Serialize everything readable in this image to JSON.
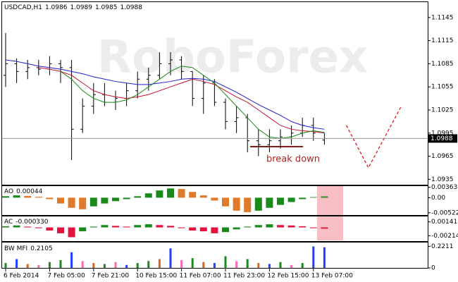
{
  "chart_data": [
    {
      "type": "ohlc",
      "title": "USDCAD,H1",
      "header_values": [
        1.0986,
        1.0989,
        1.0985,
        1.0988
      ],
      "watermark": "RoboForex",
      "categories": [
        "6 Feb 2014",
        null,
        null,
        null,
        "7 Feb 05:00",
        null,
        null,
        null,
        "7 Feb 21:00",
        null,
        null,
        null,
        "10 Feb 15:00",
        null,
        null,
        null,
        "11 Feb 07:00",
        null,
        null,
        null,
        "11 Feb 23:00",
        null,
        null,
        null,
        "12 Feb 15:00",
        null,
        null,
        null,
        "13 Feb 07:00",
        null
      ],
      "open": [
        1.107,
        1.1085,
        1.1075,
        1.108,
        1.1078,
        1.1085,
        1.108,
        1.1,
        1.103,
        1.1045,
        1.1035,
        1.104,
        1.105,
        1.1065,
        1.107,
        1.1085,
        1.109,
        1.1075,
        1.104,
        1.106,
        1.1035,
        1.101,
        1.1015,
        1.0985,
        1.098,
        1.0985,
        1.099,
        1.0995,
        1.1005,
        1.0986
      ],
      "high": [
        1.1125,
        1.1092,
        1.109,
        1.109,
        1.1095,
        1.109,
        1.109,
        1.104,
        1.106,
        1.106,
        1.105,
        1.106,
        1.1075,
        1.108,
        1.11,
        1.11,
        1.1095,
        1.1075,
        1.107,
        1.1065,
        1.104,
        1.103,
        1.102,
        1.1,
        1.1,
        1.1,
        1.1005,
        1.1015,
        1.1015,
        1.0995
      ],
      "low": [
        1.1055,
        1.106,
        1.1065,
        1.107,
        1.107,
        1.106,
        1.096,
        1.0995,
        1.102,
        1.103,
        1.1025,
        1.103,
        1.104,
        1.105,
        1.1065,
        1.107,
        1.1065,
        1.103,
        1.102,
        1.103,
        1.1,
        1.0995,
        1.097,
        1.0965,
        1.097,
        1.0975,
        1.098,
        1.099,
        1.0985,
        1.098
      ],
      "close": [
        1.1085,
        1.1075,
        1.108,
        1.1078,
        1.1085,
        1.108,
        1.1,
        1.103,
        1.1045,
        1.1035,
        1.104,
        1.105,
        1.1065,
        1.107,
        1.1085,
        1.109,
        1.1075,
        1.104,
        1.106,
        1.1035,
        1.101,
        1.1015,
        1.0985,
        1.098,
        1.0985,
        1.099,
        1.0995,
        1.1005,
        1.0995,
        1.0988
      ],
      "bar_color": "#000000",
      "series": [
        {
          "color": "#1f1fd0",
          "values": [
            1.109,
            1.1088,
            1.1085,
            1.1082,
            1.108,
            1.1078,
            1.1075,
            1.1072,
            1.1068,
            1.1065,
            1.1062,
            1.106,
            1.1058,
            1.1058,
            1.106,
            1.1062,
            1.1065,
            1.1066,
            1.1065,
            1.1062,
            1.1055,
            1.1048,
            1.104,
            1.1032,
            1.1025,
            1.1018,
            1.101,
            1.1005,
            1.1002,
            1.1
          ]
        },
        {
          "color": "#c8102e",
          "values": [
            null,
            null,
            null,
            1.108,
            1.1078,
            1.1075,
            1.107,
            1.106,
            1.105,
            1.1045,
            1.1042,
            1.104,
            1.1042,
            1.1045,
            1.105,
            1.1055,
            1.106,
            1.1065,
            1.1062,
            1.1058,
            1.105,
            1.1042,
            1.1035,
            1.1025,
            1.1015,
            1.1005,
            1.1,
            1.0998,
            1.0997,
            1.0995
          ]
        },
        {
          "color": "#1a8a1a",
          "values": [
            null,
            null,
            null,
            null,
            null,
            1.1075,
            1.1065,
            1.105,
            1.104,
            1.1035,
            1.1035,
            1.1038,
            1.1045,
            1.1055,
            1.1065,
            1.1075,
            1.1082,
            1.108,
            1.107,
            1.106,
            1.1045,
            1.103,
            1.1015,
            1.1,
            1.099,
            1.0988,
            1.099,
            1.0995,
            1.0998,
            1.0996
          ]
        }
      ],
      "forecast": {
        "color": "#e0141e",
        "x": [
          31,
          33,
          36
        ],
        "values": [
          1.1005,
          1.095,
          1.103
        ]
      },
      "last_price": 1.0988,
      "annotation": "break down",
      "ylim": [
        1.0928,
        1.1165
      ],
      "yticks": [
        1.1145,
        1.1115,
        1.1085,
        1.1055,
        1.1025,
        1.0995,
        1.0965,
        1.0935
      ]
    },
    {
      "type": "histogram",
      "title": "AO",
      "current": 0.00044,
      "values": [
        0.0005,
        0.0008,
        0.0006,
        0.0003,
        -0.0005,
        -0.002,
        -0.0035,
        -0.004,
        -0.003,
        -0.002,
        -0.0012,
        -0.0005,
        0.0005,
        0.0015,
        0.0025,
        0.0032,
        0.003,
        0.002,
        0.0008,
        -0.001,
        -0.003,
        -0.0045,
        -0.005,
        -0.0045,
        -0.0035,
        -0.0025,
        -0.0015,
        -0.0005,
        0.0002,
        0.00044
      ],
      "up_color": "#1a8a1a",
      "down_color": "#e07a2a",
      "ylim": [
        -0.006,
        0.004
      ],
      "yticks": [
        0.00363,
        {
          "value": 0,
          "label": "0.00"
        },
        -0.00522
      ]
    },
    {
      "type": "histogram",
      "title": "AC",
      "current": {
        "value": -0.00033,
        "label": "-0.000330"
      },
      "values": [
        0.0003,
        0.0005,
        0.0002,
        -0.0002,
        -0.0008,
        -0.0015,
        -0.0025,
        -0.001,
        0.0002,
        0.0006,
        0.0004,
        0.0002,
        0.0006,
        0.0008,
        0.0006,
        0.0004,
        -0.0002,
        -0.0008,
        -0.001,
        -0.0015,
        -0.0012,
        -0.0005,
        0.0002,
        0.0006,
        0.0008,
        0.0006,
        0.0005,
        0.0003,
        -0.0002,
        -0.00033
      ],
      "up_color": "#1a8a1a",
      "down_color": "#e0143c",
      "ylim": [
        -0.0035,
        0.0028
      ],
      "yticks": [
        0.001411,
        -0.002141
      ]
    },
    {
      "type": "bar",
      "title": "BW MFI",
      "current": 0.2105,
      "values": [
        0.05,
        0.09,
        0.04,
        0.03,
        0.06,
        0.08,
        0.16,
        0.07,
        0.05,
        0.04,
        0.06,
        0.03,
        0.05,
        0.07,
        0.09,
        0.2,
        0.08,
        0.1,
        0.06,
        0.05,
        0.12,
        0.07,
        0.09,
        0.05,
        0.04,
        0.06,
        0.03,
        0.05,
        0.22,
        0.2105
      ],
      "colors": [
        "#1a8a1a",
        "#1f3fff",
        "#d2691e",
        "#ff69b4",
        "#1a8a1a",
        "#1a8a1a",
        "#1f3fff",
        "#ff69b4",
        "#d2691e",
        "#1a8a1a",
        "#ff69b4",
        "#1f3fff",
        "#1a8a1a",
        "#1a8a1a",
        "#d2691e",
        "#1f3fff",
        "#ff69b4",
        "#1a8a1a",
        "#d2691e",
        "#1f3fff",
        "#1a8a1a",
        "#ff69b4",
        "#1a8a1a",
        "#d2691e",
        "#1f3fff",
        "#1a8a1a",
        "#ff69b4",
        "#1a8a1a",
        "#1f3fff",
        "#1f3fff"
      ],
      "ylim": [
        0,
        0.26
      ],
      "yticks": [
        0.2211,
        0
      ]
    }
  ]
}
